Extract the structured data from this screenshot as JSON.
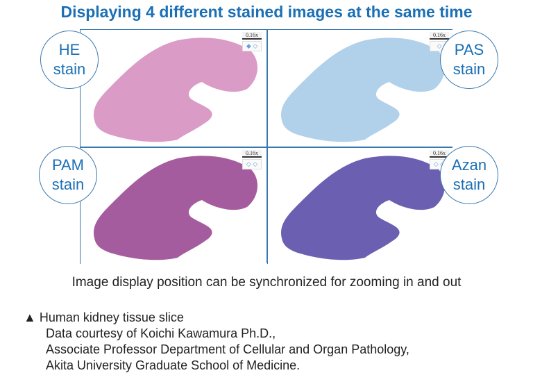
{
  "title": "Displaying 4 different stained images at the same time",
  "panels": [
    {
      "label_line1": "HE",
      "label_line2": "stain",
      "zoom": "0.16x",
      "color": "#d690c0",
      "nav": "◆ ◇"
    },
    {
      "label_line1": "PAS",
      "label_line2": "stain",
      "zoom": "0.16x",
      "color": "#a9cbe8",
      "nav": "◇"
    },
    {
      "label_line1": "PAM",
      "label_line2": "stain",
      "zoom": "0.16x",
      "color": "#9a4a94",
      "nav": "◇ ◇"
    },
    {
      "label_line1": "Azan",
      "label_line2": "stain",
      "zoom": "0.16x",
      "color": "#5a4ea8",
      "nav": "◇ ◇"
    }
  ],
  "caption": "Image display position can be synchronized for zooming in and out",
  "note": {
    "bullet": "▲",
    "line1": "Human kidney tissue slice",
    "line2": "Data courtesy of Koichi Kawamura Ph.D.,",
    "line3": "Associate Professor Department of Cellular and Organ Pathology,",
    "line4": "Akita University Graduate School of Medicine."
  }
}
